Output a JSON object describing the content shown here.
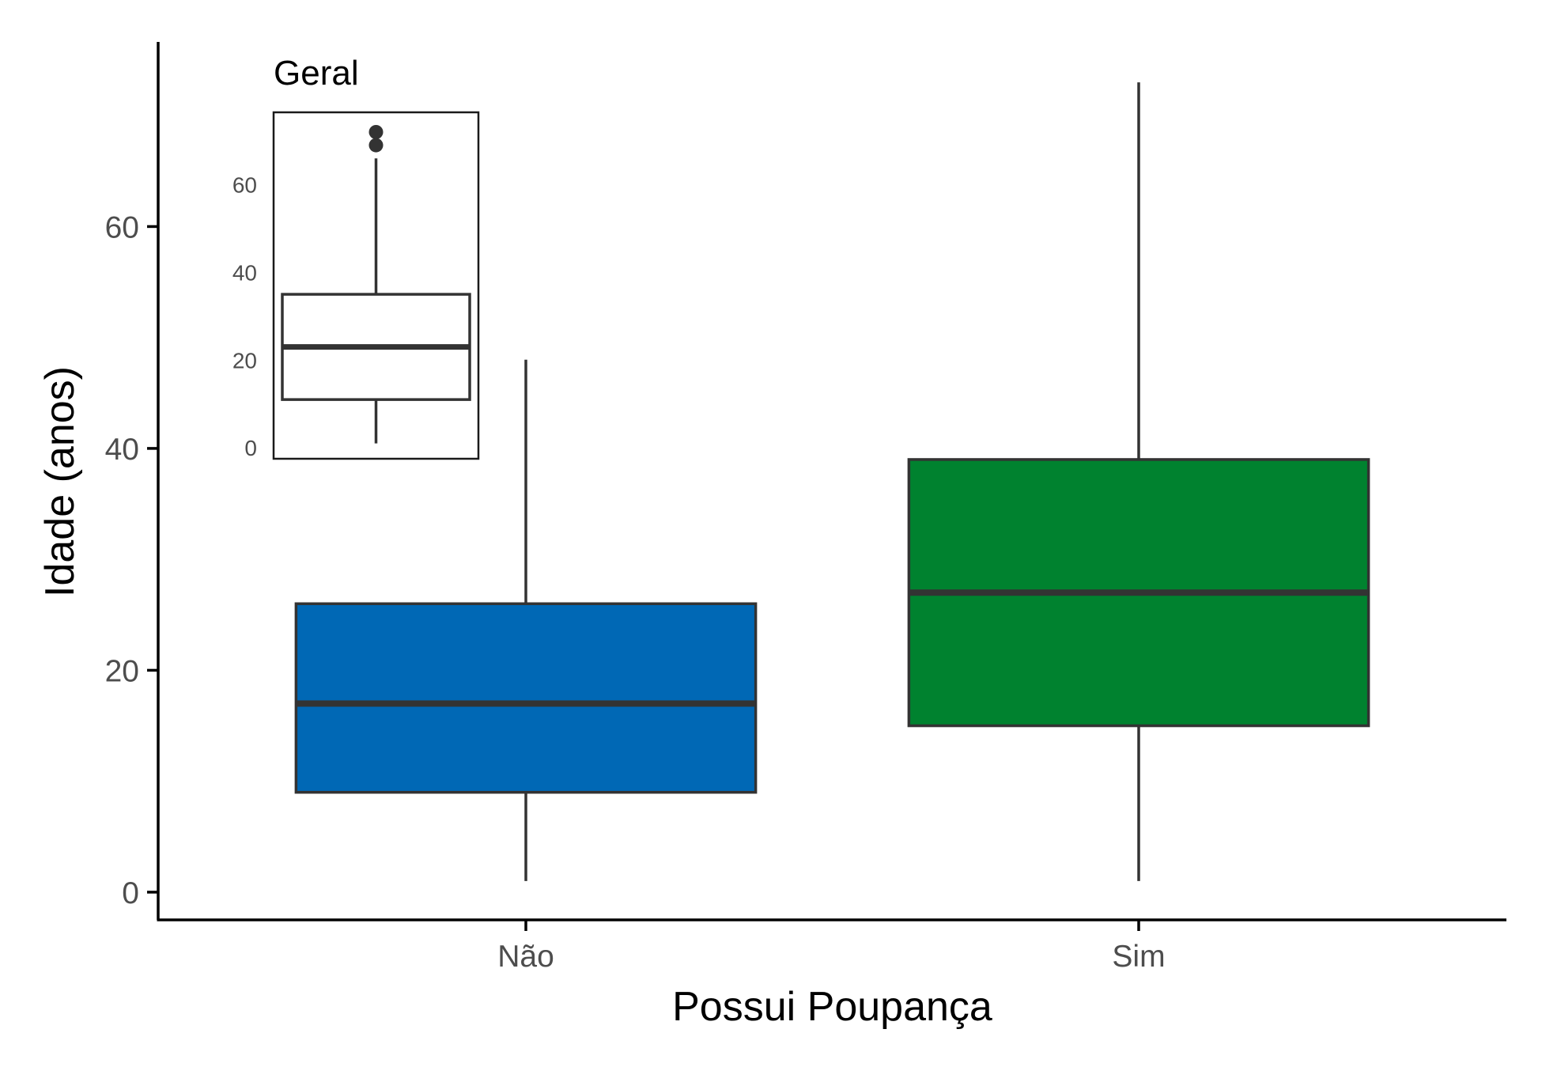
{
  "chart_data": [
    {
      "type": "boxplot",
      "xlabel": "Possui Poupança",
      "ylabel": "Idade (anos)",
      "categories": [
        "Não",
        "Sim"
      ],
      "yticks": [
        0,
        20,
        40,
        60
      ],
      "ylim": [
        -2.5,
        76.5
      ],
      "boxes": [
        {
          "category": "Não",
          "color": "#0068B5",
          "min": 1,
          "q1": 9,
          "median": 17,
          "q3": 26,
          "max": 48
        },
        {
          "category": "Sim",
          "color": "#00822F",
          "min": 1,
          "q1": 15,
          "median": 27,
          "q3": 39,
          "max": 73
        }
      ],
      "grid": false,
      "legend": "none"
    },
    {
      "type": "boxplot",
      "title": "Geral",
      "placement": "inset top-left",
      "yticks": [
        0,
        20,
        40,
        60
      ],
      "ylim": [
        -2.5,
        76.5
      ],
      "boxes": [
        {
          "category": "",
          "color": "#ffffff",
          "min": 1,
          "q1": 11,
          "median": 23,
          "q3": 35,
          "max": 66,
          "outliers": [
            69,
            72
          ]
        }
      ]
    }
  ],
  "colors": {
    "box_stroke": "#333333",
    "axis": "#000000",
    "tick_text": "#4d4d4d"
  }
}
